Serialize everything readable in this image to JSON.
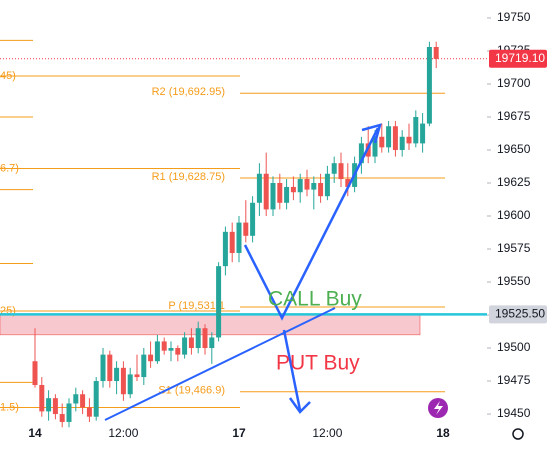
{
  "chart_data": {
    "type": "candlestick",
    "categories": [
      "14",
      null,
      null,
      null,
      null,
      null,
      null,
      null,
      null,
      null,
      null,
      null,
      null,
      "12:00",
      null,
      null,
      null,
      null,
      null,
      null,
      null,
      null,
      null,
      null,
      null,
      null,
      null,
      null,
      null,
      null,
      "17",
      null,
      null,
      null,
      null,
      null,
      null,
      null,
      null,
      null,
      null,
      null,
      null,
      "12:00",
      null,
      null,
      null,
      null,
      null,
      null,
      null,
      null,
      null,
      null,
      null,
      null,
      null,
      null,
      null,
      null,
      "18"
    ],
    "open": [
      19490,
      19472,
      19452,
      19462,
      19450,
      19444,
      19458,
      19465,
      19455,
      19448,
      19475,
      19495,
      19475,
      19485,
      19465,
      19480,
      19478,
      19495,
      19490,
      19505,
      19498,
      19500,
      19495,
      19508,
      19500,
      19515,
      19500,
      19508,
      19562,
      19588,
      19572,
      19595,
      19585,
      19610,
      19632,
      19605,
      19625,
      19610,
      19622,
      19618,
      19628,
      19620,
      19625,
      19615,
      19632,
      19640,
      19628,
      19622,
      19640,
      19655,
      19645,
      19660,
      19652,
      19668,
      19650,
      19660,
      19655,
      19655,
      19670,
      19728,
      null
    ],
    "high": [
      19515,
      19478,
      19468,
      19465,
      19458,
      19462,
      19470,
      19468,
      19462,
      19478,
      19500,
      19498,
      19490,
      19490,
      19485,
      19495,
      19500,
      19505,
      19510,
      19508,
      19505,
      19502,
      19512,
      19515,
      19520,
      19518,
      19512,
      19565,
      19592,
      19595,
      19600,
      19612,
      19615,
      19640,
      19648,
      19630,
      19632,
      19628,
      19630,
      19632,
      19635,
      19630,
      19632,
      19638,
      19645,
      19648,
      19640,
      19645,
      19660,
      19668,
      19665,
      19670,
      19672,
      19672,
      19665,
      19670,
      19680,
      19678,
      19732,
      19732,
      null
    ],
    "low": [
      19470,
      19448,
      19445,
      19446,
      19440,
      19440,
      19452,
      19450,
      19444,
      19445,
      19470,
      19470,
      19465,
      19460,
      19462,
      19475,
      19472,
      19485,
      19488,
      19495,
      19490,
      19490,
      19492,
      19495,
      19496,
      19495,
      19488,
      19505,
      19555,
      19565,
      19565,
      19580,
      19580,
      19600,
      19600,
      19600,
      19605,
      19605,
      19612,
      19610,
      19615,
      19605,
      19610,
      19612,
      19625,
      19622,
      19615,
      19618,
      19632,
      19640,
      19640,
      19648,
      19648,
      19645,
      19645,
      19650,
      19652,
      19648,
      19668,
      19712,
      null
    ],
    "close": [
      19472,
      19452,
      19462,
      19450,
      19444,
      19458,
      19465,
      19455,
      19448,
      19475,
      19495,
      19475,
      19485,
      19465,
      19480,
      19478,
      19495,
      19490,
      19505,
      19498,
      19500,
      19495,
      19508,
      19500,
      19515,
      19500,
      19508,
      19562,
      19588,
      19572,
      19595,
      19585,
      19610,
      19632,
      19605,
      19625,
      19610,
      19622,
      19618,
      19628,
      19620,
      19625,
      19615,
      19632,
      19640,
      19628,
      19622,
      19640,
      19655,
      19645,
      19660,
      19652,
      19668,
      19650,
      19660,
      19655,
      19675,
      19670,
      19728,
      19719,
      null
    ],
    "up_color": "#26a69a",
    "down_color": "#ef5350",
    "ylim": [
      19441.7,
      19763.6
    ],
    "yticks": [
      19750,
      19725,
      19700,
      19675,
      19650,
      19625,
      19600,
      19575,
      19550,
      19525,
      19500,
      19475,
      19450
    ],
    "pivots": [
      {
        "value": 19692.95,
        "label": "R2 (19,692.95)"
      },
      {
        "value": 19628.75,
        "label": "R1 (19,628.75)"
      },
      {
        "value": 19531.1,
        "label": "P (19,531.1"
      },
      {
        "value": 19466.9,
        "label": "S1 (19,466.9)"
      }
    ],
    "pivot_color": "#f59c1a",
    "prior_levels": [
      {
        "value": 19706,
        "label": "45)"
      },
      {
        "value": 19636,
        "label": "6.7)"
      },
      {
        "value": 19528,
        "label": "25)"
      },
      {
        "value": 19455,
        "label": "1.5)"
      }
    ],
    "prior_lines": [
      19733,
      19675,
      19620,
      19564,
      19474
    ],
    "last_price": {
      "value": 19719.1,
      "label": "19719.10",
      "color": "#f23645"
    },
    "level": {
      "value": 19525.5,
      "label": "19525.50",
      "color": "#26c6da"
    },
    "zone": {
      "top": 19525.5,
      "bottom": 19510,
      "color": "#f8c8cf"
    },
    "annotations": {
      "call": "CALL Buy",
      "put": "PUT Buy"
    }
  }
}
